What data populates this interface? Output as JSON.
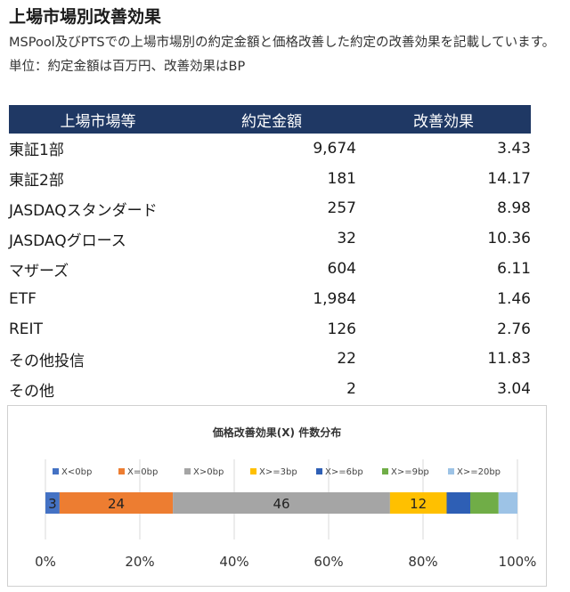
{
  "title": "上場市場別改善効果",
  "subtitle": "MSPool及びPTSでの上場市場別の約定金額と価格改善した約定の改善効果を記載しています。単位：約定金額は百万円、改善効果はBP",
  "table": {
    "headers": [
      "上場市場等",
      "約定金額",
      "改善効果"
    ],
    "rows": [
      [
        "東証1部",
        "9,674",
        "3.43"
      ],
      [
        "東証2部",
        "181",
        "14.17"
      ],
      [
        "JASDAQスタンダード",
        "257",
        "8.98"
      ],
      [
        "JASDAQグロース",
        "32",
        "10.36"
      ],
      [
        "マザーズ",
        "604",
        "6.11"
      ],
      [
        "ETF",
        "1,984",
        "1.46"
      ],
      [
        "REIT",
        "126",
        "2.76"
      ],
      [
        "その他投信",
        "22",
        "11.83"
      ],
      [
        "その他",
        "2",
        "3.04"
      ]
    ]
  },
  "chart_data": {
    "type": "bar",
    "orientation": "horizontal",
    "stacked": "percent",
    "title": "価格改善効果(X) 件数分布",
    "legend_position": "top",
    "series": [
      {
        "name": "X<0bp",
        "value": 3,
        "label": "3",
        "color": "#4472c4"
      },
      {
        "name": "X=0bp",
        "value": 24,
        "label": "24",
        "color": "#ed7d31"
      },
      {
        "name": "X>0bp",
        "value": 46,
        "label": "46",
        "color": "#a5a5a5"
      },
      {
        "name": "X>=3bp",
        "value": 12,
        "label": "12",
        "color": "#ffc000"
      },
      {
        "name": "X>=6bp",
        "value": 5,
        "label": "",
        "color": "#2e5fb5"
      },
      {
        "name": "X>=9bp",
        "value": 6,
        "label": "",
        "color": "#70ad47"
      },
      {
        "name": "X>=20bp",
        "value": 4,
        "label": "",
        "color": "#9dc3e6"
      }
    ],
    "x_ticks": [
      "0%",
      "20%",
      "40%",
      "60%",
      "80%",
      "100%"
    ],
    "xlim": [
      0,
      100
    ],
    "grid": true
  }
}
